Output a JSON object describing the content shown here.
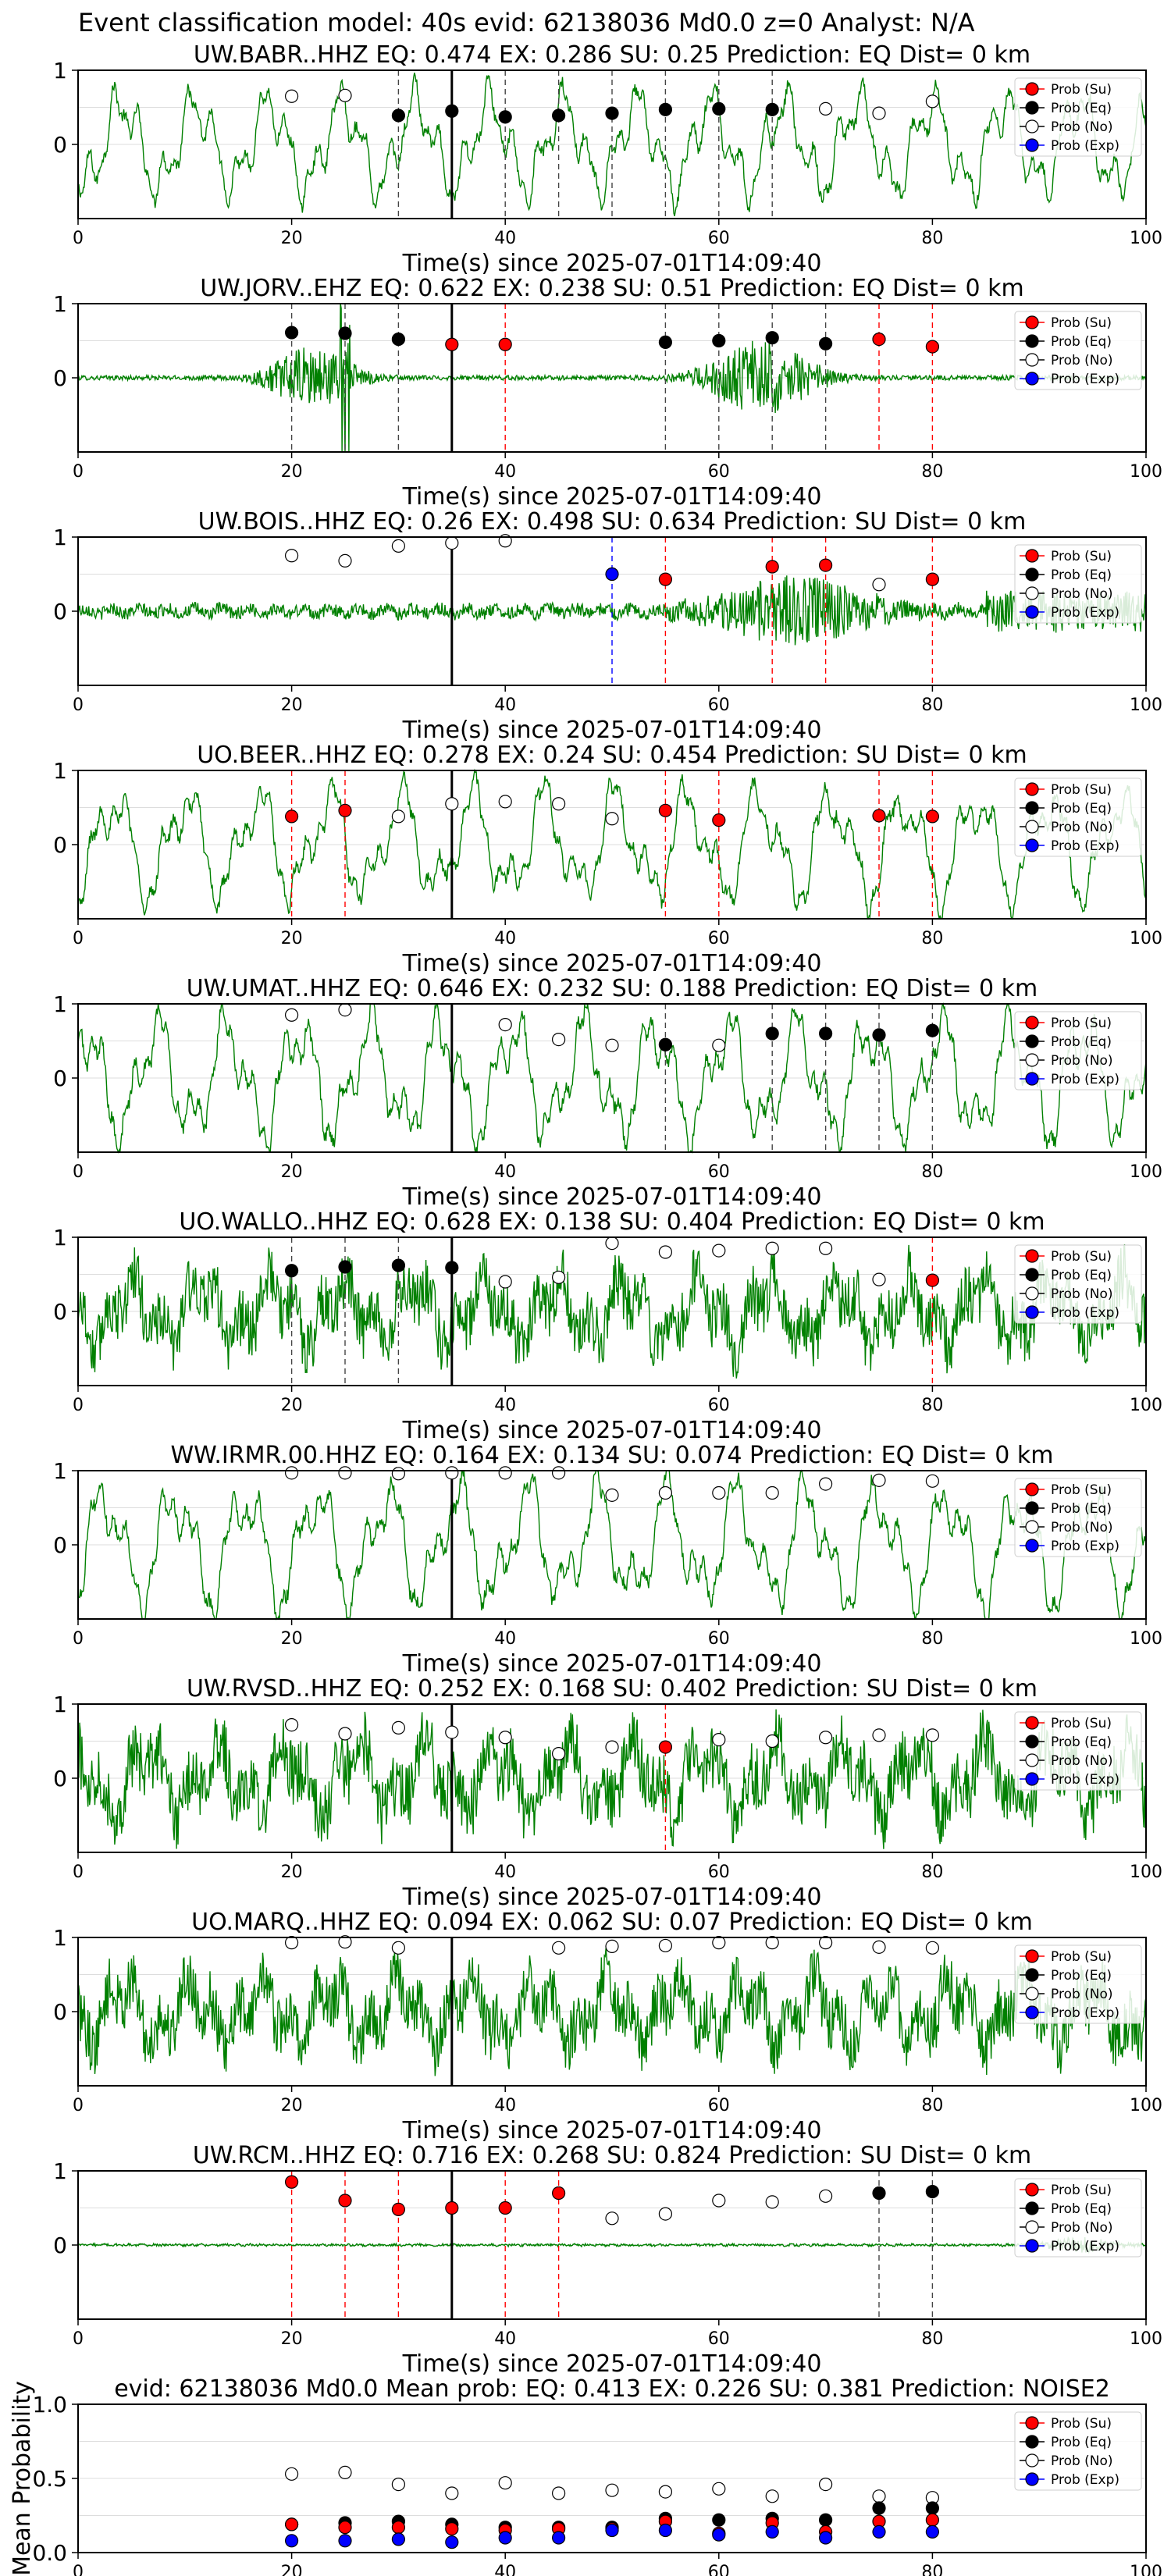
{
  "suptitle": "Event classification model: 40s evid: 62138036 Md0.0 z=0 Analyst: N/A",
  "legend_labels": [
    "Prob (Su)",
    "Prob (Eq)",
    "Prob (No)",
    "Prob (Exp)"
  ],
  "colors": {
    "su": "#ff0000",
    "eq": "#000000",
    "no": "#ffffff",
    "exp": "#0000ff",
    "trace": "#008000",
    "grid": "#dddddd"
  },
  "chart_data": [
    {
      "type": "line",
      "title": "UW.BABR..HHZ   EQ: 0.474  EX: 0.286  SU: 0.25   Prediction: EQ    Dist= 0 km",
      "xlabel": "Time(s) since 2025-07-01T14:09:40",
      "ylabel": "",
      "xlim": [
        0,
        100
      ],
      "ylim": [
        -1,
        1
      ],
      "xticks": [
        "0",
        "20",
        "40",
        "60",
        "80",
        "100"
      ],
      "yticks": [
        "1",
        "0"
      ],
      "trace": {
        "style": "smooth",
        "amplitude": 0.55
      },
      "marker_line": 35,
      "points": [
        {
          "t": 20,
          "p": 0.65,
          "c": "no"
        },
        {
          "t": 25,
          "p": 0.66,
          "c": "no"
        },
        {
          "t": 30,
          "p": 0.39,
          "c": "eq"
        },
        {
          "t": 35,
          "p": 0.45,
          "c": "eq"
        },
        {
          "t": 40,
          "p": 0.37,
          "c": "eq"
        },
        {
          "t": 45,
          "p": 0.39,
          "c": "eq"
        },
        {
          "t": 50,
          "p": 0.42,
          "c": "eq"
        },
        {
          "t": 55,
          "p": 0.47,
          "c": "eq"
        },
        {
          "t": 60,
          "p": 0.48,
          "c": "eq"
        },
        {
          "t": 65,
          "p": 0.47,
          "c": "eq"
        },
        {
          "t": 70,
          "p": 0.48,
          "c": "no"
        },
        {
          "t": 75,
          "p": 0.42,
          "c": "no"
        },
        {
          "t": 80,
          "p": 0.58,
          "c": "no"
        }
      ]
    },
    {
      "type": "line",
      "title": "UW.JORV..EHZ   EQ: 0.622  EX: 0.238  SU: 0.51   Prediction: EQ    Dist= 0 km",
      "xlabel": "Time(s) since 2025-07-01T14:09:40",
      "ylabel": "",
      "xlim": [
        0,
        100
      ],
      "ylim": [
        -1,
        1
      ],
      "xticks": [
        "0",
        "20",
        "40",
        "60",
        "80",
        "100"
      ],
      "yticks": [
        "1",
        "0"
      ],
      "trace": {
        "style": "bursts",
        "amplitude": 0.5
      },
      "marker_line": 35,
      "points": [
        {
          "t": 20,
          "p": 0.61,
          "c": "eq"
        },
        {
          "t": 25,
          "p": 0.6,
          "c": "eq"
        },
        {
          "t": 30,
          "p": 0.52,
          "c": "eq"
        },
        {
          "t": 35,
          "p": 0.45,
          "c": "su"
        },
        {
          "t": 40,
          "p": 0.45,
          "c": "su"
        },
        {
          "t": 55,
          "p": 0.48,
          "c": "eq"
        },
        {
          "t": 60,
          "p": 0.5,
          "c": "eq"
        },
        {
          "t": 65,
          "p": 0.54,
          "c": "eq"
        },
        {
          "t": 70,
          "p": 0.46,
          "c": "eq"
        },
        {
          "t": 75,
          "p": 0.52,
          "c": "su"
        },
        {
          "t": 80,
          "p": 0.42,
          "c": "su"
        }
      ]
    },
    {
      "type": "line",
      "title": "UW.BOIS..HHZ   EQ: 0.26  EX: 0.498  SU: 0.634   Prediction: SU    Dist= 0 km",
      "xlabel": "Time(s) since 2025-07-01T14:09:40",
      "ylabel": "",
      "xlim": [
        0,
        100
      ],
      "ylim": [
        -1,
        1
      ],
      "xticks": [
        "0",
        "20",
        "40",
        "60",
        "80",
        "100"
      ],
      "yticks": [
        "1",
        "0"
      ],
      "trace": {
        "style": "late",
        "amplitude": 0.45
      },
      "marker_line": 35,
      "points": [
        {
          "t": 20,
          "p": 0.75,
          "c": "no"
        },
        {
          "t": 25,
          "p": 0.68,
          "c": "no"
        },
        {
          "t": 30,
          "p": 0.88,
          "c": "no"
        },
        {
          "t": 35,
          "p": 0.92,
          "c": "no"
        },
        {
          "t": 40,
          "p": 0.95,
          "c": "no"
        },
        {
          "t": 50,
          "p": 0.5,
          "c": "exp"
        },
        {
          "t": 55,
          "p": 0.43,
          "c": "su"
        },
        {
          "t": 65,
          "p": 0.6,
          "c": "su"
        },
        {
          "t": 70,
          "p": 0.62,
          "c": "su"
        },
        {
          "t": 75,
          "p": 0.36,
          "c": "no"
        },
        {
          "t": 80,
          "p": 0.43,
          "c": "su"
        }
      ]
    },
    {
      "type": "line",
      "title": "UO.BEER..HHZ   EQ: 0.278  EX: 0.24  SU: 0.454   Prediction: SU    Dist= 0 km",
      "xlabel": "Time(s) since 2025-07-01T14:09:40",
      "ylabel": "",
      "xlim": [
        0,
        100
      ],
      "ylim": [
        -1,
        1
      ],
      "xticks": [
        "0",
        "20",
        "40",
        "60",
        "80",
        "100"
      ],
      "yticks": [
        "1",
        "0"
      ],
      "trace": {
        "style": "smooth",
        "amplitude": 0.6
      },
      "marker_line": 35,
      "points": [
        {
          "t": 20,
          "p": 0.38,
          "c": "su"
        },
        {
          "t": 25,
          "p": 0.46,
          "c": "su"
        },
        {
          "t": 30,
          "p": 0.38,
          "c": "no"
        },
        {
          "t": 35,
          "p": 0.55,
          "c": "no"
        },
        {
          "t": 40,
          "p": 0.58,
          "c": "no"
        },
        {
          "t": 45,
          "p": 0.55,
          "c": "no"
        },
        {
          "t": 50,
          "p": 0.35,
          "c": "no"
        },
        {
          "t": 55,
          "p": 0.46,
          "c": "su"
        },
        {
          "t": 60,
          "p": 0.33,
          "c": "su"
        },
        {
          "t": 75,
          "p": 0.39,
          "c": "su"
        },
        {
          "t": 80,
          "p": 0.38,
          "c": "su"
        }
      ]
    },
    {
      "type": "line",
      "title": "UW.UMAT..HHZ   EQ: 0.646  EX: 0.232  SU: 0.188   Prediction: EQ    Dist= 0 km",
      "xlabel": "Time(s) since 2025-07-01T14:09:40",
      "ylabel": "",
      "xlim": [
        0,
        100
      ],
      "ylim": [
        -1,
        1
      ],
      "xticks": [
        "0",
        "20",
        "40",
        "60",
        "80",
        "100"
      ],
      "yticks": [
        "1",
        "0"
      ],
      "trace": {
        "style": "smooth",
        "amplitude": 0.65
      },
      "marker_line": 35,
      "points": [
        {
          "t": 20,
          "p": 0.85,
          "c": "no"
        },
        {
          "t": 25,
          "p": 0.92,
          "c": "no"
        },
        {
          "t": 40,
          "p": 0.72,
          "c": "no"
        },
        {
          "t": 45,
          "p": 0.52,
          "c": "no"
        },
        {
          "t": 50,
          "p": 0.44,
          "c": "no"
        },
        {
          "t": 55,
          "p": 0.45,
          "c": "eq"
        },
        {
          "t": 60,
          "p": 0.44,
          "c": "no"
        },
        {
          "t": 65,
          "p": 0.6,
          "c": "eq"
        },
        {
          "t": 70,
          "p": 0.6,
          "c": "eq"
        },
        {
          "t": 75,
          "p": 0.58,
          "c": "eq"
        },
        {
          "t": 80,
          "p": 0.64,
          "c": "eq"
        }
      ]
    },
    {
      "type": "line",
      "title": "UO.WALLO..HHZ   EQ: 0.628  EX: 0.138  SU: 0.404   Prediction: EQ    Dist= 0 km",
      "xlabel": "Time(s) since 2025-07-01T14:09:40",
      "ylabel": "",
      "xlim": [
        0,
        100
      ],
      "ylim": [
        -1,
        1
      ],
      "xticks": [
        "0",
        "20",
        "40",
        "60",
        "80",
        "100"
      ],
      "yticks": [
        "1",
        "0"
      ],
      "trace": {
        "style": "noisy",
        "amplitude": 0.55
      },
      "marker_line": 35,
      "points": [
        {
          "t": 20,
          "p": 0.55,
          "c": "eq"
        },
        {
          "t": 25,
          "p": 0.6,
          "c": "eq"
        },
        {
          "t": 30,
          "p": 0.62,
          "c": "eq"
        },
        {
          "t": 35,
          "p": 0.59,
          "c": "eq"
        },
        {
          "t": 40,
          "p": 0.4,
          "c": "no"
        },
        {
          "t": 45,
          "p": 0.46,
          "c": "no"
        },
        {
          "t": 50,
          "p": 0.92,
          "c": "no"
        },
        {
          "t": 55,
          "p": 0.8,
          "c": "no"
        },
        {
          "t": 60,
          "p": 0.82,
          "c": "no"
        },
        {
          "t": 65,
          "p": 0.85,
          "c": "no"
        },
        {
          "t": 70,
          "p": 0.85,
          "c": "no"
        },
        {
          "t": 75,
          "p": 0.43,
          "c": "no"
        },
        {
          "t": 80,
          "p": 0.42,
          "c": "su"
        }
      ]
    },
    {
      "type": "line",
      "title": "WW.IRMR.00.HHZ   EQ: 0.164  EX: 0.134  SU: 0.074   Prediction: EQ    Dist= 0 km",
      "xlabel": "Time(s) since 2025-07-01T14:09:40",
      "ylabel": "",
      "xlim": [
        0,
        100
      ],
      "ylim": [
        -1,
        1
      ],
      "xticks": [
        "0",
        "20",
        "40",
        "60",
        "80",
        "100"
      ],
      "yticks": [
        "1",
        "0"
      ],
      "trace": {
        "style": "smooth",
        "amplitude": 0.65
      },
      "marker_line": 35,
      "points": [
        {
          "t": 20,
          "p": 0.97,
          "c": "no"
        },
        {
          "t": 25,
          "p": 0.97,
          "c": "no"
        },
        {
          "t": 30,
          "p": 0.96,
          "c": "no"
        },
        {
          "t": 35,
          "p": 0.97,
          "c": "no"
        },
        {
          "t": 40,
          "p": 0.97,
          "c": "no"
        },
        {
          "t": 45,
          "p": 0.97,
          "c": "no"
        },
        {
          "t": 50,
          "p": 0.67,
          "c": "no"
        },
        {
          "t": 55,
          "p": 0.7,
          "c": "no"
        },
        {
          "t": 60,
          "p": 0.7,
          "c": "no"
        },
        {
          "t": 65,
          "p": 0.7,
          "c": "no"
        },
        {
          "t": 70,
          "p": 0.82,
          "c": "no"
        },
        {
          "t": 75,
          "p": 0.87,
          "c": "no"
        },
        {
          "t": 80,
          "p": 0.86,
          "c": "no"
        }
      ]
    },
    {
      "type": "line",
      "title": "UW.RVSD..HHZ   EQ: 0.252  EX: 0.168  SU: 0.402   Prediction: SU    Dist= 0 km",
      "xlabel": "Time(s) since 2025-07-01T14:09:40",
      "ylabel": "",
      "xlim": [
        0,
        100
      ],
      "ylim": [
        -1,
        1
      ],
      "xticks": [
        "0",
        "20",
        "40",
        "60",
        "80",
        "100"
      ],
      "yticks": [
        "1",
        "0"
      ],
      "trace": {
        "style": "noisy",
        "amplitude": 0.6
      },
      "marker_line": 35,
      "points": [
        {
          "t": 20,
          "p": 0.72,
          "c": "no"
        },
        {
          "t": 25,
          "p": 0.6,
          "c": "no"
        },
        {
          "t": 30,
          "p": 0.68,
          "c": "no"
        },
        {
          "t": 35,
          "p": 0.62,
          "c": "no"
        },
        {
          "t": 40,
          "p": 0.55,
          "c": "no"
        },
        {
          "t": 45,
          "p": 0.33,
          "c": "no"
        },
        {
          "t": 50,
          "p": 0.42,
          "c": "no"
        },
        {
          "t": 55,
          "p": 0.42,
          "c": "su"
        },
        {
          "t": 60,
          "p": 0.52,
          "c": "no"
        },
        {
          "t": 65,
          "p": 0.5,
          "c": "no"
        },
        {
          "t": 70,
          "p": 0.55,
          "c": "no"
        },
        {
          "t": 75,
          "p": 0.58,
          "c": "no"
        },
        {
          "t": 80,
          "p": 0.58,
          "c": "no"
        }
      ]
    },
    {
      "type": "line",
      "title": "UO.MARQ..HHZ   EQ: 0.094  EX: 0.062  SU: 0.07   Prediction: EQ    Dist= 0 km",
      "xlabel": "Time(s) since 2025-07-01T14:09:40",
      "ylabel": "",
      "xlim": [
        0,
        100
      ],
      "ylim": [
        -1,
        1
      ],
      "xticks": [
        "0",
        "20",
        "40",
        "60",
        "80",
        "100"
      ],
      "yticks": [
        "1",
        "0"
      ],
      "trace": {
        "style": "noisy",
        "amplitude": 0.55
      },
      "marker_line": 35,
      "points": [
        {
          "t": 20,
          "p": 0.93,
          "c": "no"
        },
        {
          "t": 25,
          "p": 0.94,
          "c": "no"
        },
        {
          "t": 30,
          "p": 0.86,
          "c": "no"
        },
        {
          "t": 45,
          "p": 0.86,
          "c": "no"
        },
        {
          "t": 50,
          "p": 0.88,
          "c": "no"
        },
        {
          "t": 55,
          "p": 0.89,
          "c": "no"
        },
        {
          "t": 60,
          "p": 0.93,
          "c": "no"
        },
        {
          "t": 65,
          "p": 0.93,
          "c": "no"
        },
        {
          "t": 70,
          "p": 0.93,
          "c": "no"
        },
        {
          "t": 75,
          "p": 0.87,
          "c": "no"
        },
        {
          "t": 80,
          "p": 0.86,
          "c": "no"
        }
      ]
    },
    {
      "type": "line",
      "title": "UW.RCM..HHZ   EQ: 0.716  EX: 0.268  SU: 0.824   Prediction: SU    Dist= 0 km",
      "xlabel": "Time(s) since 2025-07-01T14:09:40",
      "ylabel": "",
      "xlim": [
        0,
        100
      ],
      "ylim": [
        -1,
        1
      ],
      "xticks": [
        "0",
        "20",
        "40",
        "60",
        "80",
        "100"
      ],
      "yticks": [
        "1",
        "0"
      ],
      "trace": {
        "style": "quiet",
        "amplitude": 0.12
      },
      "marker_line": 35,
      "points": [
        {
          "t": 20,
          "p": 0.85,
          "c": "su"
        },
        {
          "t": 25,
          "p": 0.6,
          "c": "su"
        },
        {
          "t": 30,
          "p": 0.48,
          "c": "su"
        },
        {
          "t": 35,
          "p": 0.5,
          "c": "su"
        },
        {
          "t": 40,
          "p": 0.5,
          "c": "su"
        },
        {
          "t": 45,
          "p": 0.7,
          "c": "su"
        },
        {
          "t": 50,
          "p": 0.36,
          "c": "no"
        },
        {
          "t": 55,
          "p": 0.42,
          "c": "no"
        },
        {
          "t": 60,
          "p": 0.6,
          "c": "no"
        },
        {
          "t": 65,
          "p": 0.58,
          "c": "no"
        },
        {
          "t": 70,
          "p": 0.66,
          "c": "no"
        },
        {
          "t": 75,
          "p": 0.7,
          "c": "eq"
        },
        {
          "t": 80,
          "p": 0.72,
          "c": "eq"
        }
      ]
    },
    {
      "type": "scatter",
      "title": "evid: 62138036  Md0.0   Mean prob:   EQ: 0.413  EX: 0.226  SU: 0.381   Prediction: NOISE2",
      "xlabel": "",
      "ylabel": "Mean Probability",
      "xlim": [
        0,
        100
      ],
      "ylim": [
        0,
        1
      ],
      "xticks": [
        "0",
        "20",
        "40",
        "60",
        "80",
        "100"
      ],
      "yticks": [
        "1.0",
        "0.5",
        "0.0"
      ],
      "x": [
        20,
        25,
        30,
        35,
        40,
        45,
        50,
        55,
        60,
        65,
        70,
        75,
        80
      ],
      "series": [
        {
          "name": "Prob (No)",
          "c": "no",
          "values": [
            0.53,
            0.54,
            0.46,
            0.4,
            0.47,
            0.4,
            0.42,
            0.41,
            0.43,
            0.38,
            0.46,
            0.38,
            0.37
          ]
        },
        {
          "name": "Prob (Eq)",
          "c": "eq",
          "values": [
            0.19,
            0.2,
            0.21,
            0.19,
            0.17,
            0.17,
            0.17,
            0.23,
            0.22,
            0.23,
            0.22,
            0.3,
            0.3
          ]
        },
        {
          "name": "Prob (Su)",
          "c": "su",
          "values": [
            0.19,
            0.17,
            0.17,
            0.16,
            0.15,
            0.16,
            0.16,
            0.21,
            0.13,
            0.2,
            0.14,
            0.21,
            0.22
          ]
        },
        {
          "name": "Prob (Exp)",
          "c": "exp",
          "values": [
            0.08,
            0.08,
            0.09,
            0.07,
            0.1,
            0.1,
            0.15,
            0.15,
            0.12,
            0.14,
            0.1,
            0.14,
            0.14
          ]
        }
      ]
    }
  ]
}
